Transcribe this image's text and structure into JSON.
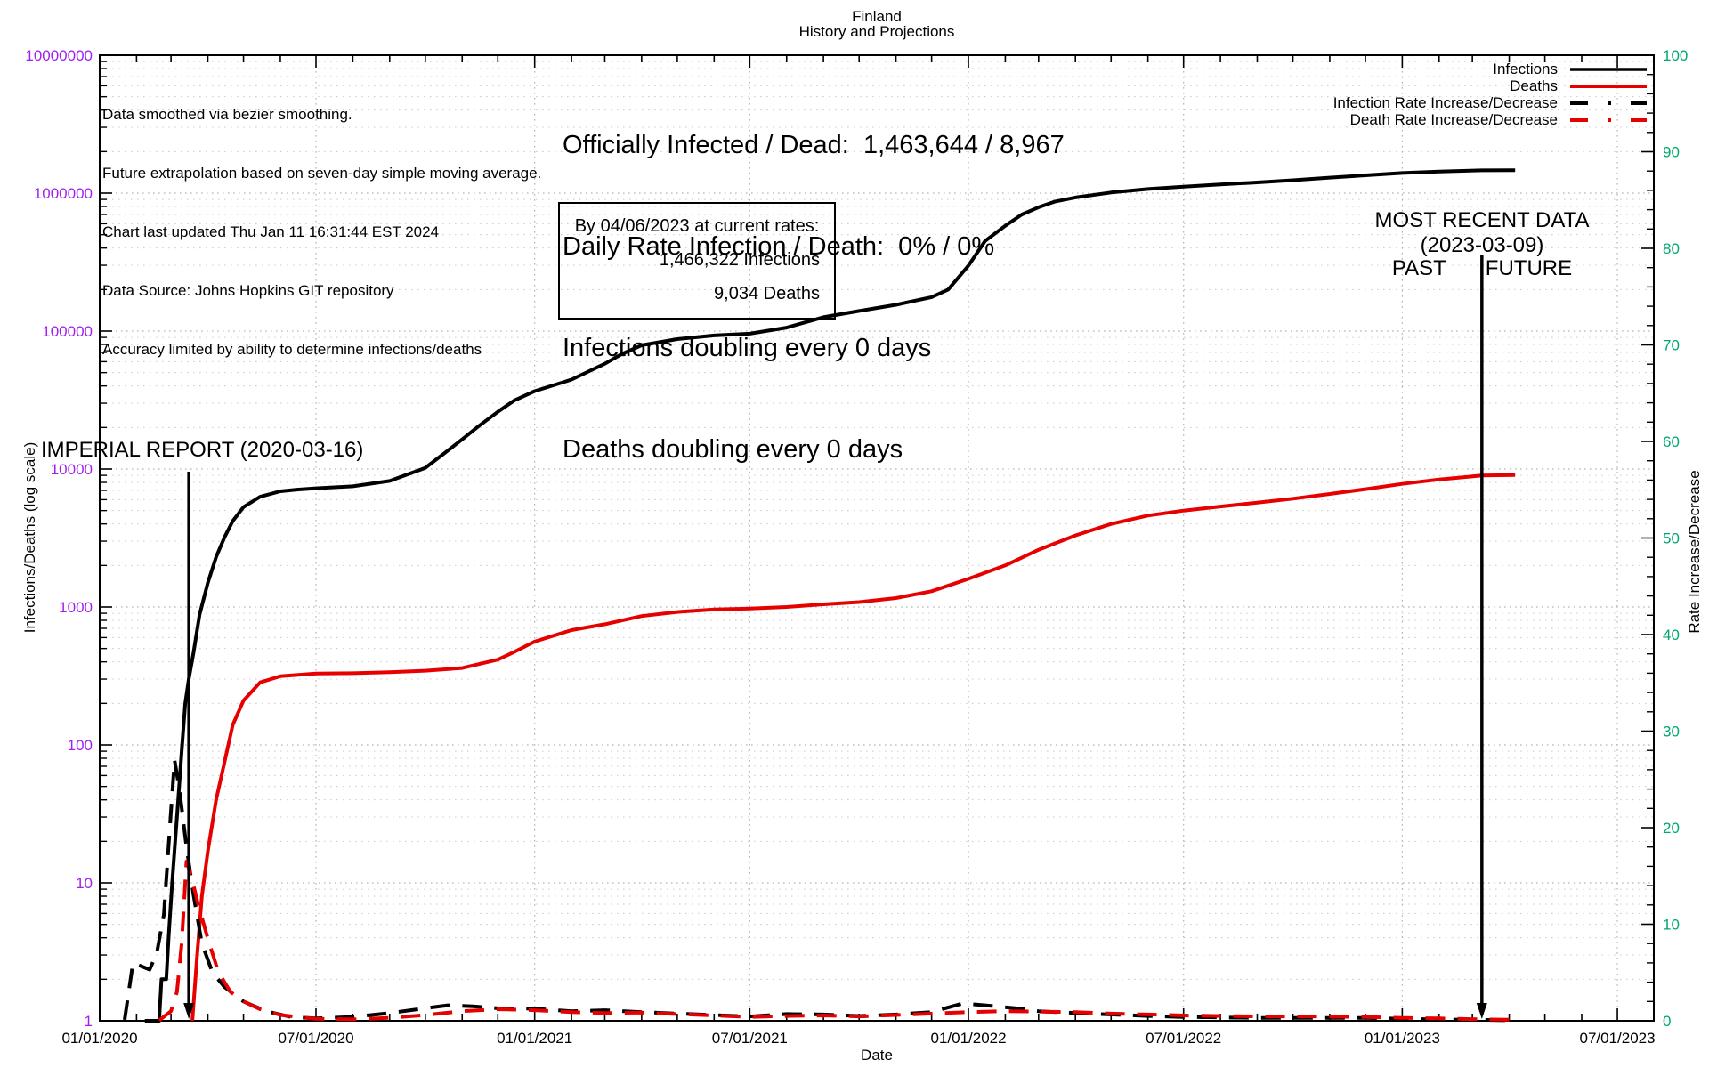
{
  "title": {
    "line1": "Finland",
    "line2": "History and Projections"
  },
  "notes": {
    "line1": "Data smoothed via bezier smoothing.",
    "line2": "Future extrapolation based on seven-day simple moving average.",
    "line3": "Chart last updated Thu Jan 11 16:31:44 EST 2024",
    "line4": "Data Source: Johns Hopkins GIT repository",
    "line5": "Accuracy limited by ability to determine infections/deaths"
  },
  "stats": {
    "line1": "Officially Infected / Dead:  1,463,644 / 8,967",
    "line2": "Daily Rate Infection / Death:  0% / 0%",
    "line3": "Infections doubling every 0 days",
    "line4": "Deaths doubling every 0 days"
  },
  "projection_box": {
    "line1": "By 04/06/2023 at current rates:",
    "line2": "1,466,322 Infections",
    "line3": "9,034 Deaths"
  },
  "annotations": {
    "imperial": {
      "label": "IMPERIAL REPORT (2020-03-16)",
      "date": "2020-03-16"
    },
    "recent": {
      "line1": "MOST RECENT DATA",
      "line2": "(2023-03-09)",
      "past": "PAST",
      "future": "FUTURE",
      "date": "2023-03-09",
      "future_end": "2023-04-06"
    }
  },
  "colors": {
    "infections": "#000000",
    "deaths": "#e60000",
    "left_ticks": "#a020f0",
    "right_ticks": "#00a86b",
    "grid": "#bfbfbf"
  },
  "chart_data": {
    "type": "line",
    "title": "Finland — History and Projections",
    "x_axis": {
      "label": "Date",
      "ticks": [
        {
          "label": "01/01/2020",
          "date": "2020-01-01"
        },
        {
          "label": "07/01/2020",
          "date": "2020-07-01"
        },
        {
          "label": "01/01/2021",
          "date": "2021-01-01"
        },
        {
          "label": "07/01/2021",
          "date": "2021-07-01"
        },
        {
          "label": "01/01/2022",
          "date": "2022-01-01"
        },
        {
          "label": "07/01/2022",
          "date": "2022-07-01"
        },
        {
          "label": "01/01/2023",
          "date": "2023-01-01"
        },
        {
          "label": "07/01/2023",
          "date": "2023-07-01"
        }
      ]
    },
    "y_axis": {
      "label": "Infections/Deaths (log scale)",
      "scale": "log",
      "range": [
        1,
        10000000
      ],
      "tick_labels": [
        "1",
        "10",
        "100",
        "1000",
        "10000",
        "100000",
        "1000000",
        "10000000"
      ]
    },
    "y2_axis": {
      "label": "Rate Increase/Decrease",
      "scale": "linear",
      "range": [
        0,
        100
      ],
      "tick_labels": [
        "0",
        "10",
        "20",
        "30",
        "40",
        "50",
        "60",
        "70",
        "80",
        "90",
        "100"
      ]
    },
    "grid": true,
    "legend_position": "top-right",
    "series": [
      {
        "name": "Infections",
        "color": "#000000",
        "style": "solid",
        "axis": "y",
        "points": [
          [
            "2020-02-08",
            1
          ],
          [
            "2020-02-20",
            1
          ],
          [
            "2020-02-22",
            2
          ],
          [
            "2020-02-26",
            2
          ],
          [
            "2020-02-28",
            4
          ],
          [
            "2020-03-02",
            10
          ],
          [
            "2020-03-06",
            30
          ],
          [
            "2020-03-10",
            90
          ],
          [
            "2020-03-13",
            200
          ],
          [
            "2020-03-16",
            300
          ],
          [
            "2020-03-20",
            470
          ],
          [
            "2020-03-25",
            880
          ],
          [
            "2020-04-01",
            1500
          ],
          [
            "2020-04-08",
            2300
          ],
          [
            "2020-04-15",
            3200
          ],
          [
            "2020-04-22",
            4200
          ],
          [
            "2020-05-01",
            5300
          ],
          [
            "2020-05-15",
            6300
          ],
          [
            "2020-06-01",
            6900
          ],
          [
            "2020-06-15",
            7100
          ],
          [
            "2020-07-01",
            7250
          ],
          [
            "2020-08-01",
            7500
          ],
          [
            "2020-09-01",
            8200
          ],
          [
            "2020-10-01",
            10200
          ],
          [
            "2020-10-15",
            12600
          ],
          [
            "2020-11-01",
            16400
          ],
          [
            "2020-11-15",
            20500
          ],
          [
            "2020-12-01",
            26000
          ],
          [
            "2020-12-15",
            31500
          ],
          [
            "2021-01-01",
            36700
          ],
          [
            "2021-02-01",
            44500
          ],
          [
            "2021-03-01",
            58000
          ],
          [
            "2021-03-15",
            68000
          ],
          [
            "2021-04-01",
            79000
          ],
          [
            "2021-05-01",
            87500
          ],
          [
            "2021-06-01",
            93000
          ],
          [
            "2021-07-01",
            95800
          ],
          [
            "2021-08-01",
            106000
          ],
          [
            "2021-09-01",
            126000
          ],
          [
            "2021-10-01",
            140000
          ],
          [
            "2021-11-01",
            155000
          ],
          [
            "2021-12-01",
            176000
          ],
          [
            "2021-12-15",
            200000
          ],
          [
            "2022-01-01",
            298000
          ],
          [
            "2022-01-15",
            450000
          ],
          [
            "2022-02-01",
            580000
          ],
          [
            "2022-02-15",
            700000
          ],
          [
            "2022-03-01",
            790000
          ],
          [
            "2022-03-15",
            870000
          ],
          [
            "2022-04-01",
            930000
          ],
          [
            "2022-05-01",
            1010000
          ],
          [
            "2022-06-01",
            1070000
          ],
          [
            "2022-07-01",
            1115000
          ],
          [
            "2022-08-01",
            1155000
          ],
          [
            "2022-09-01",
            1195000
          ],
          [
            "2022-10-01",
            1240000
          ],
          [
            "2022-11-01",
            1295000
          ],
          [
            "2022-12-01",
            1345000
          ],
          [
            "2023-01-01",
            1398000
          ],
          [
            "2023-02-01",
            1435000
          ],
          [
            "2023-03-09",
            1463644
          ],
          [
            "2023-04-06",
            1466322
          ]
        ]
      },
      {
        "name": "Deaths",
        "color": "#e60000",
        "style": "solid",
        "axis": "y",
        "points": [
          [
            "2020-03-19",
            1
          ],
          [
            "2020-03-23",
            3
          ],
          [
            "2020-03-27",
            8
          ],
          [
            "2020-04-01",
            17
          ],
          [
            "2020-04-08",
            40
          ],
          [
            "2020-04-15",
            75
          ],
          [
            "2020-04-22",
            140
          ],
          [
            "2020-05-01",
            210
          ],
          [
            "2020-05-15",
            284
          ],
          [
            "2020-06-01",
            315
          ],
          [
            "2020-07-01",
            329
          ],
          [
            "2020-08-01",
            331
          ],
          [
            "2020-09-01",
            337
          ],
          [
            "2020-10-01",
            345
          ],
          [
            "2020-11-01",
            361
          ],
          [
            "2020-12-01",
            415
          ],
          [
            "2020-12-15",
            473
          ],
          [
            "2021-01-01",
            561
          ],
          [
            "2021-02-01",
            680
          ],
          [
            "2021-03-01",
            750
          ],
          [
            "2021-04-01",
            860
          ],
          [
            "2021-05-01",
            920
          ],
          [
            "2021-06-01",
            960
          ],
          [
            "2021-07-01",
            975
          ],
          [
            "2021-08-01",
            1000
          ],
          [
            "2021-09-01",
            1045
          ],
          [
            "2021-10-01",
            1085
          ],
          [
            "2021-11-01",
            1160
          ],
          [
            "2021-12-01",
            1300
          ],
          [
            "2022-01-01",
            1600
          ],
          [
            "2022-02-01",
            2000
          ],
          [
            "2022-03-01",
            2600
          ],
          [
            "2022-04-01",
            3300
          ],
          [
            "2022-05-01",
            4000
          ],
          [
            "2022-06-01",
            4600
          ],
          [
            "2022-07-01",
            5000
          ],
          [
            "2022-08-01",
            5350
          ],
          [
            "2022-09-01",
            5700
          ],
          [
            "2022-10-01",
            6100
          ],
          [
            "2022-11-01",
            6600
          ],
          [
            "2022-12-01",
            7150
          ],
          [
            "2023-01-01",
            7800
          ],
          [
            "2023-02-01",
            8400
          ],
          [
            "2023-03-09",
            8967
          ],
          [
            "2023-04-06",
            9034
          ]
        ]
      },
      {
        "name": "Infection Rate Increase/Decrease",
        "color": "#000000",
        "style": "dashed",
        "axis": "y2",
        "points": [
          [
            "2020-01-22",
            0.1
          ],
          [
            "2020-01-29",
            6
          ],
          [
            "2020-02-12",
            5.3
          ],
          [
            "2020-02-18",
            7
          ],
          [
            "2020-02-24",
            11
          ],
          [
            "2020-02-29",
            20
          ],
          [
            "2020-03-04",
            27
          ],
          [
            "2020-03-08",
            24
          ],
          [
            "2020-03-14",
            18
          ],
          [
            "2020-03-20",
            13
          ],
          [
            "2020-03-27",
            8
          ],
          [
            "2020-04-05",
            5
          ],
          [
            "2020-04-15",
            3.5
          ],
          [
            "2020-05-01",
            2
          ],
          [
            "2020-05-20",
            1
          ],
          [
            "2020-06-10",
            0.4
          ],
          [
            "2020-07-01",
            0.25
          ],
          [
            "2020-08-01",
            0.4
          ],
          [
            "2020-09-01",
            0.8
          ],
          [
            "2020-10-01",
            1.3
          ],
          [
            "2020-10-20",
            1.6
          ],
          [
            "2020-11-10",
            1.5
          ],
          [
            "2020-12-01",
            1.3
          ],
          [
            "2021-01-01",
            1.25
          ],
          [
            "2021-02-01",
            1.0
          ],
          [
            "2021-03-01",
            1.1
          ],
          [
            "2021-04-01",
            0.9
          ],
          [
            "2021-05-01",
            0.75
          ],
          [
            "2021-06-01",
            0.6
          ],
          [
            "2021-07-01",
            0.45
          ],
          [
            "2021-08-01",
            0.7
          ],
          [
            "2021-09-01",
            0.65
          ],
          [
            "2021-10-01",
            0.5
          ],
          [
            "2021-11-01",
            0.65
          ],
          [
            "2021-12-01",
            0.9
          ],
          [
            "2021-12-27",
            1.8
          ],
          [
            "2022-01-15",
            1.6
          ],
          [
            "2022-02-10",
            1.3
          ],
          [
            "2022-03-01",
            1.0
          ],
          [
            "2022-04-01",
            0.8
          ],
          [
            "2022-05-01",
            0.65
          ],
          [
            "2022-06-01",
            0.5
          ],
          [
            "2022-07-01",
            0.4
          ],
          [
            "2022-08-01",
            0.35
          ],
          [
            "2022-09-01",
            0.3
          ],
          [
            "2022-10-15",
            0.3
          ],
          [
            "2022-12-01",
            0.3
          ],
          [
            "2023-01-01",
            0.2
          ],
          [
            "2023-02-01",
            0.15
          ],
          [
            "2023-03-09",
            0.1
          ],
          [
            "2023-04-06",
            0.05
          ]
        ]
      },
      {
        "name": "Death Rate Increase/Decrease",
        "color": "#e60000",
        "style": "dashed",
        "axis": "y2",
        "points": [
          [
            "2020-02-20",
            0.05
          ],
          [
            "2020-03-01",
            1
          ],
          [
            "2020-03-06",
            3
          ],
          [
            "2020-03-10",
            8
          ],
          [
            "2020-03-14",
            16.5
          ],
          [
            "2020-03-18",
            15
          ],
          [
            "2020-03-24",
            12
          ],
          [
            "2020-04-01",
            8.5
          ],
          [
            "2020-04-10",
            5
          ],
          [
            "2020-04-20",
            3
          ],
          [
            "2020-05-01",
            2
          ],
          [
            "2020-05-15",
            1.2
          ],
          [
            "2020-06-01",
            0.6
          ],
          [
            "2020-07-01",
            0.2
          ],
          [
            "2020-08-01",
            0.15
          ],
          [
            "2020-09-01",
            0.3
          ],
          [
            "2020-10-01",
            0.6
          ],
          [
            "2020-11-01",
            1.0
          ],
          [
            "2020-12-01",
            1.2
          ],
          [
            "2021-01-01",
            1.1
          ],
          [
            "2021-02-01",
            0.9
          ],
          [
            "2021-03-01",
            0.8
          ],
          [
            "2021-04-01",
            0.85
          ],
          [
            "2021-05-01",
            0.7
          ],
          [
            "2021-06-01",
            0.55
          ],
          [
            "2021-07-01",
            0.4
          ],
          [
            "2021-08-01",
            0.5
          ],
          [
            "2021-09-01",
            0.55
          ],
          [
            "2021-10-01",
            0.45
          ],
          [
            "2021-11-01",
            0.6
          ],
          [
            "2021-12-01",
            0.75
          ],
          [
            "2022-01-01",
            0.9
          ],
          [
            "2022-02-01",
            1.0
          ],
          [
            "2022-03-01",
            0.95
          ],
          [
            "2022-04-01",
            0.9
          ],
          [
            "2022-05-01",
            0.75
          ],
          [
            "2022-06-01",
            0.65
          ],
          [
            "2022-07-01",
            0.55
          ],
          [
            "2022-08-01",
            0.5
          ],
          [
            "2022-09-01",
            0.45
          ],
          [
            "2022-10-15",
            0.45
          ],
          [
            "2022-12-01",
            0.4
          ],
          [
            "2023-01-01",
            0.3
          ],
          [
            "2023-02-01",
            0.25
          ],
          [
            "2023-03-09",
            0.15
          ],
          [
            "2023-04-06",
            0.1
          ]
        ]
      }
    ]
  }
}
